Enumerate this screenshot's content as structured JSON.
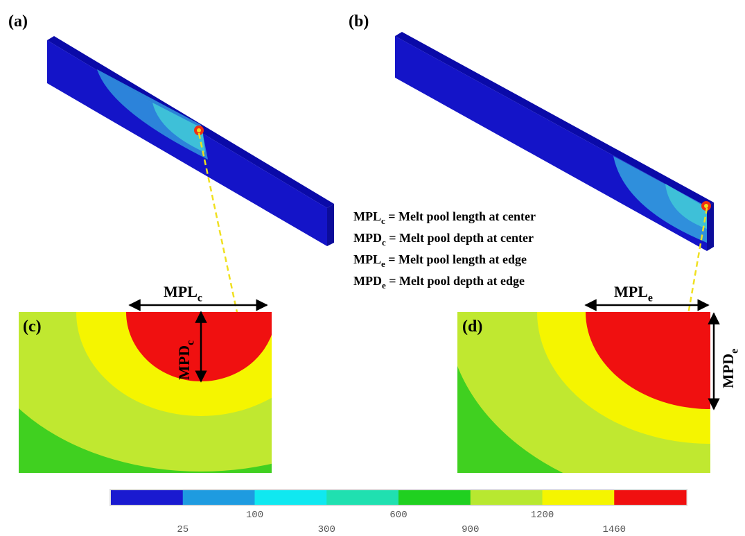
{
  "panels": [
    {
      "label": "(a)"
    },
    {
      "label": "(b)"
    },
    {
      "label": "(c)"
    },
    {
      "label": "(d)"
    }
  ],
  "measures": {
    "mpl_c": {
      "base": "MPL",
      "sub": "c"
    },
    "mpd_c": {
      "base": "MPD",
      "sub": "c"
    },
    "mpl_e": {
      "base": "MPL",
      "sub": "e"
    },
    "mpd_e": {
      "base": "MPD",
      "sub": "e"
    }
  },
  "definitions": [
    {
      "base": "MPL",
      "sub": "c",
      "text": " = Melt pool length at center"
    },
    {
      "base": "MPD",
      "sub": "c",
      "text": " = Melt pool depth at center"
    },
    {
      "base": "MPL",
      "sub": "e",
      "text": " = Melt pool length at edge"
    },
    {
      "base": "MPD",
      "sub": "e",
      "text": " = Melt pool depth at edge"
    }
  ],
  "colorbar": {
    "colors": [
      "#1a1ad0",
      "#1e9be0",
      "#10e8f0",
      "#20e0b0",
      "#20d020",
      "#b8e830",
      "#f5f500",
      "#f01010"
    ],
    "labels": [
      25,
      100,
      300,
      600,
      900,
      1200,
      1460
    ]
  }
}
